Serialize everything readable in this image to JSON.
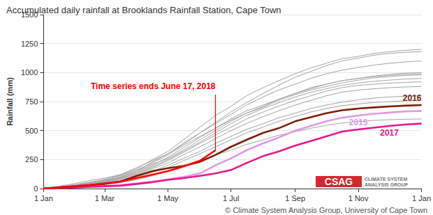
{
  "chart_data": {
    "type": "line",
    "title": "Accumulated daily rainfall at Brooklands Rainfall Station, Cape Town",
    "y_label": "Rainfall (mm)",
    "x": [
      0,
      15,
      31,
      45,
      59,
      74,
      90,
      105,
      120,
      135,
      151,
      166,
      181,
      196,
      212,
      227,
      243,
      258,
      273,
      288,
      304,
      319,
      334,
      349,
      365
    ],
    "xlim": [
      0,
      365
    ],
    "xticks": [
      {
        "value": 0,
        "label": "1 Jan"
      },
      {
        "value": 59,
        "label": "1 Mar"
      },
      {
        "value": 120,
        "label": "1 May"
      },
      {
        "value": 181,
        "label": "1 Jul"
      },
      {
        "value": 243,
        "label": "1 Sep"
      },
      {
        "value": 304,
        "label": "1 Nov"
      },
      {
        "value": 365,
        "label": "1 Jan"
      }
    ],
    "ylim": [
      0,
      1500
    ],
    "yticks": [
      0,
      250,
      500,
      750,
      1000,
      1250,
      1500
    ],
    "grid": true,
    "series": [
      {
        "color": "#a3a3a3",
        "line_style": "thin",
        "values": [
          0,
          10,
          30,
          55,
          80,
          115,
          170,
          250,
          320,
          420,
          530,
          630,
          710,
          800,
          870,
          930,
          990,
          1040,
          1080,
          1120,
          1140,
          1165,
          1180,
          1192,
          1200
        ]
      },
      {
        "color": "#a3a3a3",
        "line_style": "thin",
        "values": [
          0,
          20,
          45,
          70,
          90,
          120,
          180,
          240,
          300,
          380,
          480,
          570,
          660,
          740,
          820,
          890,
          960,
          1010,
          1060,
          1100,
          1125,
          1150,
          1165,
          1175,
          1180
        ]
      },
      {
        "color": "#a3a3a3",
        "line_style": "thin",
        "values": [
          0,
          8,
          25,
          40,
          60,
          100,
          150,
          230,
          300,
          390,
          480,
          560,
          640,
          720,
          790,
          850,
          900,
          950,
          990,
          1020,
          1045,
          1065,
          1080,
          1092,
          1100
        ]
      },
      {
        "color": "#a3a3a3",
        "line_style": "thin",
        "values": [
          0,
          12,
          30,
          50,
          70,
          95,
          140,
          200,
          270,
          350,
          440,
          520,
          600,
          670,
          720,
          770,
          820,
          870,
          900,
          930,
          950,
          970,
          985,
          995,
          1000
        ]
      },
      {
        "color": "#a3a3a3",
        "line_style": "thin",
        "values": [
          0,
          5,
          20,
          40,
          65,
          100,
          150,
          210,
          260,
          330,
          420,
          500,
          580,
          650,
          710,
          770,
          820,
          860,
          900,
          930,
          950,
          965,
          975,
          985,
          990
        ]
      },
      {
        "color": "#a3a3a3",
        "line_style": "thin",
        "values": [
          0,
          15,
          35,
          55,
          75,
          110,
          160,
          220,
          290,
          370,
          450,
          520,
          590,
          650,
          700,
          760,
          810,
          850,
          880,
          910,
          935,
          955,
          965,
          975,
          980
        ]
      },
      {
        "color": "#a3a3a3",
        "line_style": "thin",
        "values": [
          0,
          10,
          25,
          45,
          60,
          90,
          130,
          190,
          250,
          320,
          400,
          480,
          560,
          630,
          690,
          740,
          790,
          830,
          860,
          890,
          910,
          925,
          935,
          945,
          950
        ]
      },
      {
        "color": "#a3a3a3",
        "line_style": "thin",
        "values": [
          0,
          6,
          20,
          35,
          55,
          85,
          130,
          180,
          240,
          310,
          390,
          460,
          530,
          600,
          660,
          710,
          760,
          800,
          840,
          870,
          890,
          900,
          910,
          915,
          920
        ]
      },
      {
        "color": "#a3a3a3",
        "line_style": "thin",
        "values": [
          0,
          10,
          28,
          42,
          58,
          80,
          120,
          170,
          220,
          290,
          360,
          430,
          500,
          560,
          620,
          670,
          720,
          760,
          800,
          830,
          850,
          860,
          870,
          876,
          880
        ]
      },
      {
        "color": "#a3a3a3",
        "line_style": "thin",
        "values": [
          0,
          8,
          22,
          35,
          50,
          70,
          110,
          150,
          200,
          260,
          320,
          390,
          450,
          510,
          560,
          610,
          650,
          690,
          720,
          745,
          765,
          780,
          790,
          796,
          800
        ]
      },
      {
        "color": "#a3a3a3",
        "line_style": "thin",
        "values": [
          0,
          12,
          25,
          38,
          50,
          70,
          100,
          140,
          180,
          240,
          300,
          360,
          420,
          480,
          530,
          580,
          620,
          660,
          690,
          715,
          730,
          742,
          750,
          756,
          760
        ]
      },
      {
        "color": "#a3a3a3",
        "line_style": "thin",
        "values": [
          0,
          5,
          15,
          25,
          35,
          50,
          75,
          110,
          150,
          190,
          240,
          290,
          330,
          380,
          420,
          460,
          490,
          520,
          545,
          565,
          578,
          588,
          594,
          598,
          600
        ]
      },
      {
        "name": "2015",
        "color": "#dc9be8",
        "line_style": "thick",
        "values": [
          0,
          5,
          10,
          15,
          20,
          30,
          45,
          60,
          80,
          100,
          130,
          200,
          260,
          330,
          390,
          440,
          500,
          540,
          580,
          610,
          630,
          645,
          655,
          665,
          670
        ]
      },
      {
        "name": "2017",
        "color": "#e8168c",
        "line_style": "thick",
        "values": [
          0,
          5,
          10,
          15,
          20,
          25,
          40,
          55,
          75,
          90,
          110,
          130,
          160,
          220,
          280,
          320,
          370,
          410,
          450,
          490,
          510,
          525,
          540,
          552,
          560
        ]
      },
      {
        "name": "2016",
        "color": "#7a1f06",
        "line_style": "thick",
        "values": [
          0,
          10,
          20,
          30,
          40,
          60,
          110,
          150,
          175,
          195,
          230,
          290,
          360,
          420,
          480,
          520,
          580,
          615,
          650,
          675,
          690,
          700,
          708,
          715,
          720
        ]
      },
      {
        "color": "#ff0000",
        "line_style": "thick",
        "values": [
          0,
          10,
          20,
          30,
          45,
          60,
          90,
          120,
          150,
          190,
          240,
          330,
          null,
          null,
          null,
          null,
          null,
          null,
          null,
          null,
          null,
          null,
          null,
          null,
          null
        ]
      }
    ],
    "annotations": [
      {
        "text": "Time series ends June 17, 2018",
        "x": 166,
        "y": 330,
        "color": "#ff0000"
      }
    ],
    "logo": {
      "text": "CSAG",
      "subtext": [
        "CLIMATE SYSTEM",
        "ANALYSIS GROUP"
      ],
      "color": "#d6262f"
    },
    "credit": "© Climate System Analysis Group, University of Cape Town"
  }
}
